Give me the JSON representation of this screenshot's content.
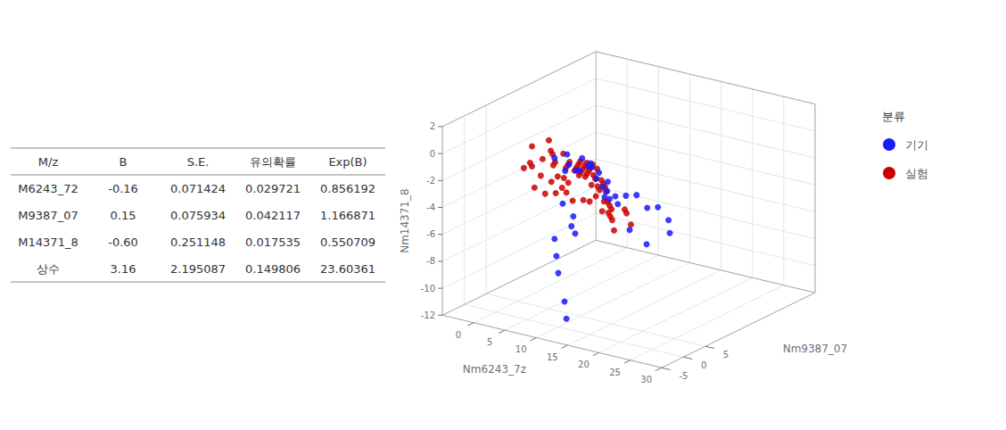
{
  "chart_data": [
    {
      "type": "table",
      "columns": [
        "M/z",
        "B",
        "S.E.",
        "유의확률",
        "Exp(B)"
      ],
      "rows": [
        [
          "M6243_72",
          "-0.16",
          "0.071424",
          "0.029721",
          "0.856192"
        ],
        [
          "M9387_07",
          "0.15",
          "0.075934",
          "0.042117",
          "1.166871"
        ],
        [
          "M14371_8",
          "-0.60",
          "0.251148",
          "0.017535",
          "0.550709"
        ],
        [
          "상수",
          "3.16",
          "2.195087",
          "0.149806",
          "23.60361"
        ]
      ]
    },
    {
      "type": "scatter3d",
      "xlabel": "Nm6243_7z",
      "ylabel": "Nm9387_07",
      "zlabel": "Nm14371_8",
      "xlim": [
        -5,
        30
      ],
      "ylim": [
        -5,
        30
      ],
      "zlim": [
        -12,
        2
      ],
      "xticks": [
        0,
        5,
        10,
        15,
        20,
        25,
        30
      ],
      "yticks": [
        -5,
        0,
        5
      ],
      "zticks": [
        -12,
        -10,
        -8,
        -6,
        -4,
        -2,
        0,
        2
      ],
      "grid": true,
      "legend": "right",
      "legend_title": "분류",
      "series": [
        {
          "name": "기기",
          "color": "#1a1aff",
          "values": [
            [
              8,
              2,
              0
            ],
            [
              10,
              2,
              0.5
            ],
            [
              11,
              1,
              0
            ],
            [
              12,
              2,
              -0.5
            ],
            [
              13,
              3,
              0
            ],
            [
              14,
              2,
              0
            ],
            [
              9,
              3,
              -1
            ],
            [
              10,
              4,
              -1
            ],
            [
              11,
              4,
              0
            ],
            [
              12,
              4,
              -0.5
            ],
            [
              13,
              5,
              -1
            ],
            [
              14,
              3,
              -1
            ],
            [
              15,
              3,
              -1.5
            ],
            [
              16,
              2,
              -2
            ],
            [
              17,
              3,
              -2
            ],
            [
              18,
              4,
              -2
            ],
            [
              19,
              5,
              -2
            ],
            [
              20,
              6,
              -3
            ],
            [
              21,
              7,
              -3
            ],
            [
              22,
              8,
              -4
            ],
            [
              10,
              1,
              -3
            ],
            [
              11,
              2,
              -4
            ],
            [
              10,
              3,
              -5
            ],
            [
              12,
              1,
              -5
            ],
            [
              8,
              2,
              -6
            ],
            [
              9,
              1,
              -7
            ],
            [
              10,
              0,
              -8
            ],
            [
              11,
              0,
              -10
            ],
            [
              12,
              -1,
              -11
            ],
            [
              15,
              4,
              -2
            ],
            [
              16,
              5,
              -3
            ],
            [
              14,
              6,
              -3
            ],
            [
              13,
              7,
              -2
            ],
            [
              20,
              2,
              -4
            ],
            [
              22,
              3,
              -5
            ],
            [
              25,
              4,
              -4
            ]
          ]
        },
        {
          "name": "실험",
          "color": "#cc0000",
          "values": [
            [
              3,
              4,
              0
            ],
            [
              5,
              5,
              0.5
            ],
            [
              6,
              4,
              0
            ],
            [
              7,
              3,
              0
            ],
            [
              8,
              4,
              0
            ],
            [
              9,
              4,
              -0.5
            ],
            [
              10,
              5,
              -0.5
            ],
            [
              11,
              5,
              -0.5
            ],
            [
              12,
              5,
              -0.5
            ],
            [
              8,
              5,
              -1
            ],
            [
              9,
              6,
              -1
            ],
            [
              10,
              6,
              -1
            ],
            [
              11,
              6,
              -1
            ],
            [
              12,
              6,
              -1
            ],
            [
              7,
              6,
              -1.5
            ],
            [
              8,
              7,
              -1.5
            ],
            [
              9,
              7,
              -1.5
            ],
            [
              10,
              7,
              -1.5
            ],
            [
              6,
              5,
              -1
            ],
            [
              5,
              6,
              -1.5
            ],
            [
              4,
              5,
              -1
            ],
            [
              3,
              4,
              -1.5
            ],
            [
              11,
              7,
              -2
            ],
            [
              12,
              7,
              -2
            ],
            [
              13,
              6,
              -2
            ],
            [
              14,
              5,
              -2
            ],
            [
              7,
              8,
              -2
            ],
            [
              8,
              8,
              -2
            ],
            [
              9,
              8,
              -2
            ],
            [
              10,
              8,
              -2
            ],
            [
              6,
              7,
              -2.5
            ],
            [
              5,
              7,
              -2.5
            ],
            [
              7,
              9,
              -2.5
            ],
            [
              8,
              9,
              -2.5
            ],
            [
              9,
              9,
              -3
            ],
            [
              10,
              9,
              -3
            ],
            [
              11,
              8,
              -3
            ],
            [
              12,
              8,
              -3
            ],
            [
              6,
              8,
              -3
            ],
            [
              5,
              8,
              -3.5
            ],
            [
              4,
              7,
              -3
            ],
            [
              3,
              6,
              -2.5
            ],
            [
              13,
              7,
              -3.5
            ],
            [
              14,
              6,
              -3.5
            ],
            [
              15,
              5,
              -3.5
            ],
            [
              2,
              5,
              -1.5
            ],
            [
              15,
              8,
              -4
            ],
            [
              16,
              7,
              -4
            ],
            [
              11,
              9,
              -4
            ],
            [
              9,
              10,
              -4
            ],
            [
              8,
              10,
              -4.5
            ],
            [
              7,
              10,
              -4.5
            ],
            [
              6,
              9,
              -4.5
            ],
            [
              5,
              9,
              -4
            ],
            [
              10,
              10,
              -5
            ],
            [
              11,
              10,
              -5
            ],
            [
              12,
              9,
              -5
            ],
            [
              13,
              8,
              -5
            ],
            [
              14,
              7,
              -5.5
            ],
            [
              4,
              8,
              -4
            ],
            [
              3,
              7,
              -4
            ],
            [
              16,
              8,
              -5
            ],
            [
              2,
              6,
              -3.5
            ],
            [
              1,
              5,
              -2
            ]
          ]
        }
      ]
    }
  ]
}
